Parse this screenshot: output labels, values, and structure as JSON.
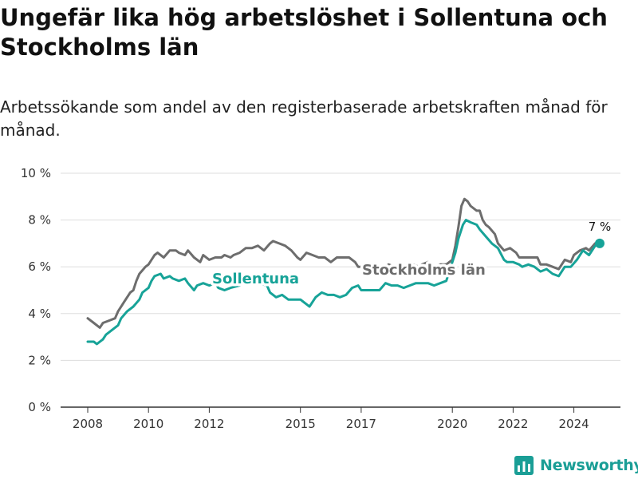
{
  "header": {
    "title": "Ungefär lika hög arbetslöshet i Sollentuna och Stockholms län",
    "subtitle": "Arbetssökande som andel av den registerbaserade arbetskraften månad för månad."
  },
  "footer": {
    "brand": "Newsworthy"
  },
  "colors": {
    "sollentuna": "#17a398",
    "stockholm": "#6d6d6d",
    "grid": "#dddddd",
    "axis": "#333333"
  },
  "chart_data": {
    "type": "line",
    "title": "Ungefär lika hög arbetslöshet i Sollentuna och Stockholms län",
    "subtitle": "Arbetssökande som andel av den registerbaserade arbetskraften månad för månad.",
    "xlabel": "",
    "ylabel": "",
    "xlim": [
      2007.8,
      2025.4
    ],
    "ylim": [
      0,
      10
    ],
    "y_ticks": [
      0,
      2,
      4,
      6,
      8,
      10
    ],
    "y_tick_labels": [
      "0 %",
      "2 %",
      "4 %",
      "6 %",
      "8 %",
      "10 %"
    ],
    "x_ticks": [
      2008,
      2010,
      2012,
      2015,
      2017,
      2020,
      2022,
      2024
    ],
    "x_tick_labels": [
      "2008",
      "2010",
      "2012",
      "2015",
      "2017",
      "2020",
      "2022",
      "2024"
    ],
    "grid": true,
    "end_annotation": "7 %",
    "series": [
      {
        "name": "Stockholms län",
        "label": "Stockholms län",
        "points": [
          [
            2008.0,
            3.8
          ],
          [
            2008.2,
            3.6
          ],
          [
            2008.4,
            3.4
          ],
          [
            2008.5,
            3.6
          ],
          [
            2008.7,
            3.7
          ],
          [
            2008.9,
            3.8
          ],
          [
            2009.0,
            4.1
          ],
          [
            2009.2,
            4.5
          ],
          [
            2009.4,
            4.9
          ],
          [
            2009.5,
            5.0
          ],
          [
            2009.6,
            5.4
          ],
          [
            2009.7,
            5.7
          ],
          [
            2009.9,
            6.0
          ],
          [
            2010.0,
            6.1
          ],
          [
            2010.2,
            6.5
          ],
          [
            2010.3,
            6.6
          ],
          [
            2010.5,
            6.4
          ],
          [
            2010.7,
            6.7
          ],
          [
            2010.9,
            6.7
          ],
          [
            2011.0,
            6.6
          ],
          [
            2011.2,
            6.5
          ],
          [
            2011.3,
            6.7
          ],
          [
            2011.5,
            6.4
          ],
          [
            2011.7,
            6.2
          ],
          [
            2011.8,
            6.5
          ],
          [
            2012.0,
            6.3
          ],
          [
            2012.2,
            6.4
          ],
          [
            2012.4,
            6.4
          ],
          [
            2012.5,
            6.5
          ],
          [
            2012.7,
            6.4
          ],
          [
            2012.8,
            6.5
          ],
          [
            2013.0,
            6.6
          ],
          [
            2013.2,
            6.8
          ],
          [
            2013.4,
            6.8
          ],
          [
            2013.6,
            6.9
          ],
          [
            2013.8,
            6.7
          ],
          [
            2014.0,
            7.0
          ],
          [
            2014.1,
            7.1
          ],
          [
            2014.3,
            7.0
          ],
          [
            2014.5,
            6.9
          ],
          [
            2014.7,
            6.7
          ],
          [
            2014.9,
            6.4
          ],
          [
            2015.0,
            6.3
          ],
          [
            2015.2,
            6.6
          ],
          [
            2015.4,
            6.5
          ],
          [
            2015.6,
            6.4
          ],
          [
            2015.8,
            6.4
          ],
          [
            2016.0,
            6.2
          ],
          [
            2016.2,
            6.4
          ],
          [
            2016.4,
            6.4
          ],
          [
            2016.6,
            6.4
          ],
          [
            2016.8,
            6.2
          ],
          [
            2016.9,
            6.0
          ],
          [
            2017.1,
            6.0
          ],
          [
            2017.3,
            6.1
          ],
          [
            2017.5,
            6.1
          ],
          [
            2017.7,
            5.9
          ],
          [
            2017.9,
            6.1
          ],
          [
            2018.1,
            6.0
          ],
          [
            2018.3,
            6.1
          ],
          [
            2018.5,
            6.0
          ],
          [
            2018.7,
            6.1
          ],
          [
            2018.9,
            6.0
          ],
          [
            2019.0,
            6.1
          ],
          [
            2019.2,
            6.2
          ],
          [
            2019.4,
            6.0
          ],
          [
            2019.6,
            6.1
          ],
          [
            2019.8,
            6.1
          ],
          [
            2019.9,
            6.2
          ],
          [
            2020.0,
            6.3
          ],
          [
            2020.1,
            6.9
          ],
          [
            2020.2,
            7.7
          ],
          [
            2020.3,
            8.6
          ],
          [
            2020.4,
            8.9
          ],
          [
            2020.5,
            8.8
          ],
          [
            2020.6,
            8.6
          ],
          [
            2020.8,
            8.4
          ],
          [
            2020.9,
            8.4
          ],
          [
            2021.0,
            8.0
          ],
          [
            2021.1,
            7.8
          ],
          [
            2021.2,
            7.7
          ],
          [
            2021.4,
            7.4
          ],
          [
            2021.5,
            7.0
          ],
          [
            2021.7,
            6.7
          ],
          [
            2021.9,
            6.8
          ],
          [
            2022.1,
            6.6
          ],
          [
            2022.2,
            6.4
          ],
          [
            2022.4,
            6.4
          ],
          [
            2022.6,
            6.4
          ],
          [
            2022.8,
            6.4
          ],
          [
            2022.9,
            6.1
          ],
          [
            2023.1,
            6.1
          ],
          [
            2023.3,
            6.0
          ],
          [
            2023.5,
            5.9
          ],
          [
            2023.7,
            6.3
          ],
          [
            2023.9,
            6.2
          ],
          [
            2024.0,
            6.5
          ],
          [
            2024.2,
            6.7
          ],
          [
            2024.4,
            6.8
          ],
          [
            2024.5,
            6.7
          ],
          [
            2024.7,
            7.0
          ],
          [
            2024.85,
            7.0
          ]
        ]
      },
      {
        "name": "Sollentuna",
        "label": "Sollentuna",
        "points": [
          [
            2008.0,
            2.8
          ],
          [
            2008.2,
            2.8
          ],
          [
            2008.3,
            2.7
          ],
          [
            2008.5,
            2.9
          ],
          [
            2008.6,
            3.1
          ],
          [
            2008.8,
            3.3
          ],
          [
            2009.0,
            3.5
          ],
          [
            2009.1,
            3.8
          ],
          [
            2009.3,
            4.1
          ],
          [
            2009.5,
            4.3
          ],
          [
            2009.7,
            4.6
          ],
          [
            2009.8,
            4.9
          ],
          [
            2010.0,
            5.1
          ],
          [
            2010.1,
            5.4
          ],
          [
            2010.2,
            5.6
          ],
          [
            2010.4,
            5.7
          ],
          [
            2010.5,
            5.5
          ],
          [
            2010.7,
            5.6
          ],
          [
            2010.8,
            5.5
          ],
          [
            2011.0,
            5.4
          ],
          [
            2011.2,
            5.5
          ],
          [
            2011.3,
            5.3
          ],
          [
            2011.5,
            5.0
          ],
          [
            2011.6,
            5.2
          ],
          [
            2011.8,
            5.3
          ],
          [
            2012.0,
            5.2
          ],
          [
            2012.2,
            5.3
          ],
          [
            2012.3,
            5.1
          ],
          [
            2012.5,
            5.0
          ],
          [
            2012.7,
            5.1
          ],
          [
            2013.0,
            5.2
          ],
          [
            2013.3,
            5.4
          ],
          [
            2013.6,
            5.3
          ],
          [
            2013.9,
            5.2
          ],
          [
            2014.0,
            4.9
          ],
          [
            2014.2,
            4.7
          ],
          [
            2014.4,
            4.8
          ],
          [
            2014.6,
            4.6
          ],
          [
            2014.8,
            4.6
          ],
          [
            2015.0,
            4.6
          ],
          [
            2015.2,
            4.4
          ],
          [
            2015.3,
            4.3
          ],
          [
            2015.5,
            4.7
          ],
          [
            2015.7,
            4.9
          ],
          [
            2015.9,
            4.8
          ],
          [
            2016.1,
            4.8
          ],
          [
            2016.3,
            4.7
          ],
          [
            2016.5,
            4.8
          ],
          [
            2016.7,
            5.1
          ],
          [
            2016.9,
            5.2
          ],
          [
            2017.0,
            5.0
          ],
          [
            2017.2,
            5.0
          ],
          [
            2017.4,
            5.0
          ],
          [
            2017.6,
            5.0
          ],
          [
            2017.8,
            5.3
          ],
          [
            2018.0,
            5.2
          ],
          [
            2018.2,
            5.2
          ],
          [
            2018.4,
            5.1
          ],
          [
            2018.6,
            5.2
          ],
          [
            2018.8,
            5.3
          ],
          [
            2019.0,
            5.3
          ],
          [
            2019.2,
            5.3
          ],
          [
            2019.4,
            5.2
          ],
          [
            2019.6,
            5.3
          ],
          [
            2019.8,
            5.4
          ],
          [
            2019.9,
            5.8
          ],
          [
            2020.0,
            6.2
          ],
          [
            2020.1,
            6.6
          ],
          [
            2020.2,
            7.2
          ],
          [
            2020.35,
            7.8
          ],
          [
            2020.45,
            8.0
          ],
          [
            2020.6,
            7.9
          ],
          [
            2020.8,
            7.8
          ],
          [
            2020.9,
            7.6
          ],
          [
            2021.1,
            7.3
          ],
          [
            2021.3,
            7.0
          ],
          [
            2021.5,
            6.8
          ],
          [
            2021.7,
            6.3
          ],
          [
            2021.8,
            6.2
          ],
          [
            2022.0,
            6.2
          ],
          [
            2022.2,
            6.1
          ],
          [
            2022.3,
            6.0
          ],
          [
            2022.5,
            6.1
          ],
          [
            2022.7,
            6.0
          ],
          [
            2022.9,
            5.8
          ],
          [
            2023.1,
            5.9
          ],
          [
            2023.3,
            5.7
          ],
          [
            2023.5,
            5.6
          ],
          [
            2023.7,
            6.0
          ],
          [
            2023.9,
            6.0
          ],
          [
            2024.1,
            6.3
          ],
          [
            2024.3,
            6.7
          ],
          [
            2024.5,
            6.5
          ],
          [
            2024.7,
            6.9
          ],
          [
            2024.85,
            7.0
          ]
        ]
      }
    ]
  }
}
